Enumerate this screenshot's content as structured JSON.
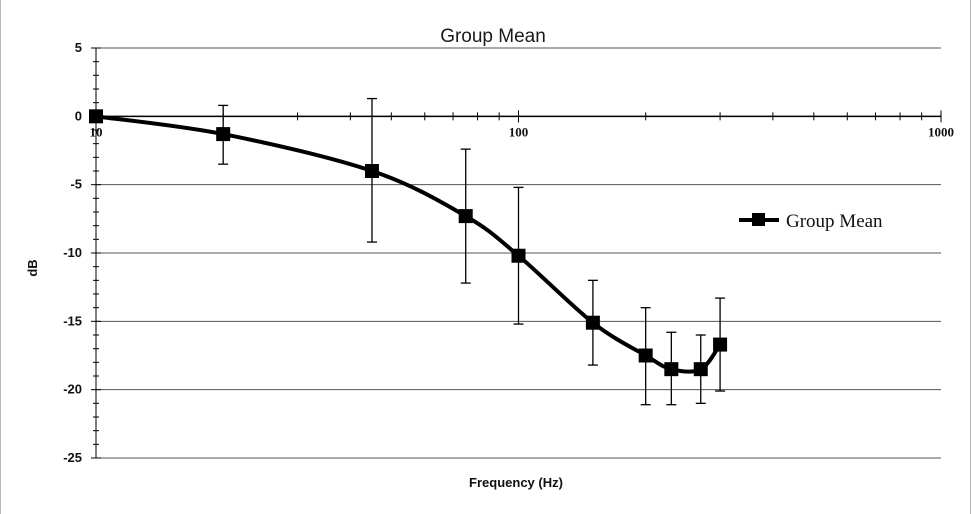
{
  "chart_data": {
    "type": "line",
    "title": "Group Mean",
    "xlabel": "Frequency (Hz)",
    "ylabel": "dB",
    "x_scale": "log",
    "xlim": [
      10,
      1000
    ],
    "ylim": [
      -25,
      5
    ],
    "x_ticks": [
      10,
      100,
      1000
    ],
    "x_tick_labels": [
      "10",
      "100",
      "1000"
    ],
    "y_ticks": [
      5,
      0,
      -5,
      -10,
      -15,
      -20,
      -25
    ],
    "y_tick_labels": [
      "5",
      "0",
      "-5",
      "-10",
      "-15",
      "-20",
      "-25"
    ],
    "grid": "horizontal",
    "legend_position": "right",
    "series": [
      {
        "name": "Group Mean",
        "color": "#000000",
        "marker": "square",
        "x": [
          10,
          20,
          45,
          75,
          100,
          150,
          200,
          230,
          270,
          300
        ],
        "y": [
          0,
          -1.3,
          -4.0,
          -7.3,
          -10.2,
          -15.1,
          -17.5,
          -18.5,
          -18.5,
          -16.7
        ],
        "err_upper": [
          0,
          0.8,
          1.3,
          -2.4,
          -5.2,
          -12.0,
          -14.0,
          -15.8,
          -16.0,
          -13.3
        ],
        "err_lower": [
          0,
          -3.5,
          -9.2,
          -12.2,
          -15.2,
          -18.2,
          -21.1,
          -21.1,
          -21.0,
          -20.1
        ]
      }
    ]
  }
}
